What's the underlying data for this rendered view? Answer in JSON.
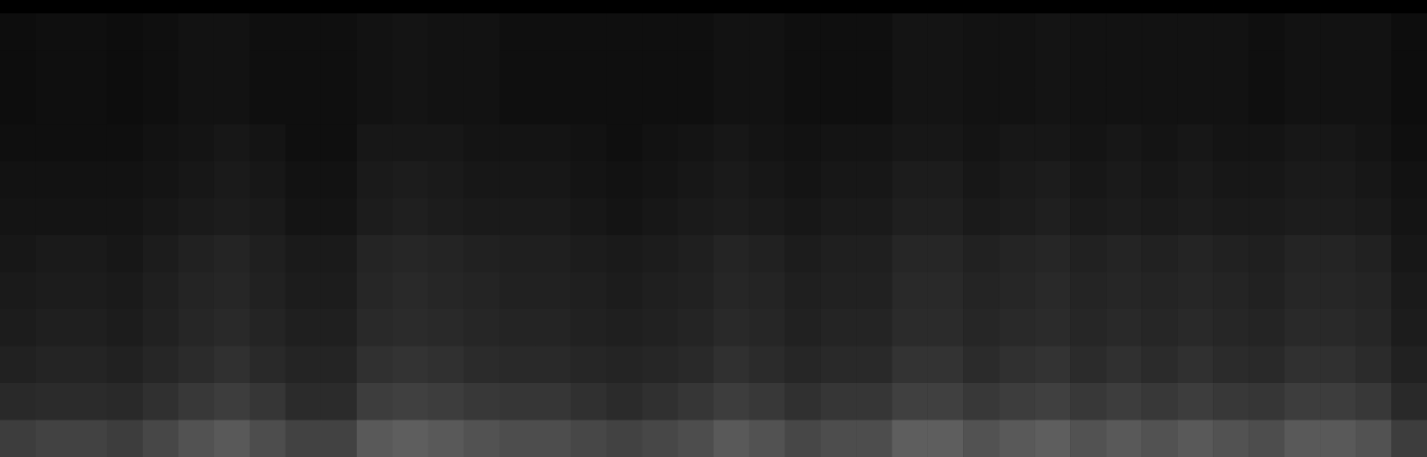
{
  "chart_data": {
    "type": "heatmap",
    "color": "#ffffff",
    "tick_labels": false,
    "zlim": [
      0,
      100
    ],
    "cells": [
      [
        5,
        6,
        6,
        5,
        6,
        7,
        7,
        6,
        6,
        6,
        7,
        8,
        7,
        7,
        6,
        6,
        6,
        6,
        6,
        6,
        7,
        7,
        6,
        6,
        6,
        8,
        8,
        7,
        7,
        8,
        7,
        7,
        7,
        7,
        7,
        6,
        7,
        7,
        7,
        5
      ],
      [
        5,
        6,
        6,
        5,
        6,
        7,
        7,
        6,
        6,
        6,
        7,
        8,
        7,
        7,
        6,
        6,
        6,
        6,
        6,
        6,
        7,
        7,
        6,
        6,
        6,
        8,
        8,
        7,
        7,
        8,
        7,
        7,
        7,
        7,
        7,
        6,
        7,
        7,
        7,
        5
      ],
      [
        5,
        6,
        6,
        5,
        6,
        7,
        7,
        6,
        6,
        6,
        7,
        8,
        7,
        7,
        6,
        6,
        6,
        6,
        6,
        6,
        7,
        7,
        6,
        6,
        6,
        8,
        8,
        7,
        7,
        8,
        7,
        7,
        7,
        7,
        7,
        6,
        7,
        7,
        7,
        5
      ],
      [
        6,
        6,
        6,
        6,
        7,
        8,
        9,
        8,
        6,
        6,
        9,
        9,
        9,
        8,
        8,
        8,
        7,
        6,
        7,
        8,
        9,
        8,
        7,
        8,
        8,
        9,
        9,
        8,
        9,
        9,
        8,
        9,
        8,
        9,
        8,
        8,
        9,
        9,
        8,
        6
      ],
      [
        7,
        7,
        7,
        7,
        8,
        9,
        10,
        9,
        7,
        7,
        10,
        11,
        10,
        9,
        9,
        9,
        8,
        7,
        8,
        9,
        10,
        9,
        8,
        9,
        9,
        11,
        11,
        9,
        10,
        11,
        9,
        10,
        9,
        10,
        9,
        9,
        10,
        10,
        9,
        7
      ],
      [
        8,
        8,
        8,
        8,
        9,
        10,
        11,
        10,
        8,
        8,
        11,
        12,
        11,
        10,
        10,
        10,
        9,
        8,
        9,
        10,
        11,
        10,
        9,
        10,
        10,
        12,
        12,
        10,
        11,
        12,
        10,
        11,
        10,
        11,
        10,
        10,
        11,
        11,
        10,
        8
      ],
      [
        9,
        10,
        10,
        9,
        11,
        13,
        14,
        12,
        10,
        10,
        14,
        15,
        14,
        13,
        12,
        12,
        11,
        10,
        11,
        12,
        14,
        13,
        11,
        12,
        12,
        15,
        15,
        13,
        14,
        15,
        13,
        14,
        13,
        14,
        13,
        12,
        14,
        14,
        13,
        9
      ],
      [
        10,
        11,
        11,
        10,
        12,
        14,
        15,
        13,
        11,
        11,
        15,
        16,
        15,
        14,
        13,
        13,
        12,
        11,
        12,
        13,
        15,
        14,
        12,
        13,
        13,
        16,
        16,
        14,
        15,
        16,
        14,
        15,
        14,
        15,
        14,
        13,
        15,
        15,
        14,
        10
      ],
      [
        11,
        12,
        12,
        11,
        13,
        15,
        16,
        14,
        12,
        12,
        16,
        17,
        16,
        15,
        14,
        14,
        13,
        12,
        13,
        14,
        16,
        15,
        13,
        14,
        14,
        17,
        17,
        15,
        16,
        17,
        15,
        16,
        15,
        16,
        15,
        14,
        16,
        16,
        15,
        11
      ],
      [
        13,
        14,
        14,
        13,
        15,
        17,
        19,
        16,
        14,
        14,
        19,
        20,
        19,
        17,
        16,
        16,
        15,
        14,
        15,
        16,
        19,
        17,
        15,
        16,
        16,
        20,
        20,
        17,
        19,
        20,
        17,
        19,
        17,
        19,
        17,
        16,
        19,
        19,
        17,
        13
      ],
      [
        16,
        17,
        17,
        16,
        19,
        22,
        24,
        21,
        17,
        17,
        24,
        25,
        24,
        22,
        21,
        21,
        19,
        17,
        19,
        21,
        24,
        22,
        19,
        21,
        21,
        25,
        25,
        22,
        24,
        25,
        22,
        24,
        22,
        24,
        22,
        21,
        24,
        24,
        22,
        16
      ],
      [
        24,
        26,
        26,
        24,
        28,
        32,
        35,
        30,
        26,
        26,
        35,
        37,
        35,
        32,
        30,
        30,
        28,
        26,
        28,
        30,
        35,
        32,
        28,
        30,
        30,
        37,
        37,
        32,
        35,
        37,
        32,
        35,
        32,
        35,
        32,
        30,
        35,
        35,
        32,
        24
      ]
    ]
  }
}
